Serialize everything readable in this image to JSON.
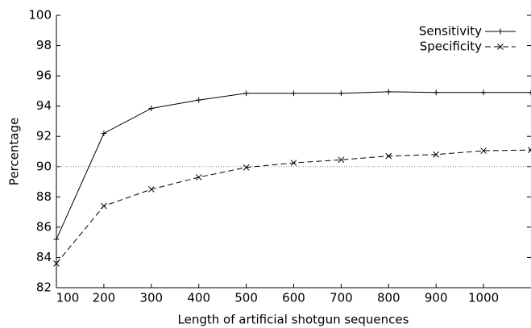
{
  "chart_data": {
    "type": "line",
    "xlabel": "Length of artificial shotgun sequences",
    "ylabel": "Percentage",
    "x": [
      100,
      200,
      300,
      400,
      500,
      600,
      700,
      800,
      900,
      1000,
      1100
    ],
    "series": [
      {
        "name": "Sensitivity",
        "color": "#000000",
        "dash": "solid",
        "marker": "plus",
        "values": [
          85.2,
          92.2,
          93.85,
          94.4,
          94.85,
          94.85,
          94.85,
          94.95,
          94.9,
          94.9,
          94.9
        ]
      },
      {
        "name": "Specificity",
        "color": "#000000",
        "dash": "dashed",
        "marker": "x",
        "values": [
          83.6,
          87.4,
          88.5,
          89.3,
          89.95,
          90.25,
          90.45,
          90.7,
          90.8,
          91.05,
          91.1
        ]
      }
    ],
    "hline": 90,
    "xlim": [
      100,
      1100
    ],
    "xticks": [
      100,
      200,
      300,
      400,
      500,
      600,
      700,
      800,
      900,
      1000
    ],
    "ylim": [
      82,
      100
    ],
    "yticks": [
      82,
      84,
      86,
      88,
      90,
      92,
      94,
      96,
      98,
      100
    ],
    "legend": "upper right"
  }
}
